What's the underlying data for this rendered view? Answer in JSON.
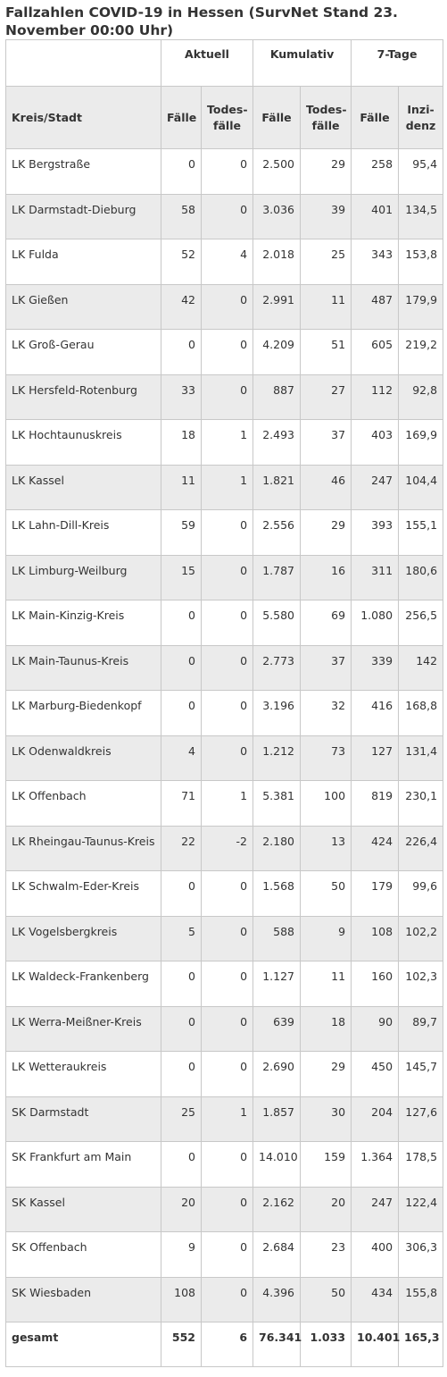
{
  "title": "Fallzahlen COVID-19 in Hessen (SurvNet Stand 23. November 00:00 Uhr)",
  "groups": {
    "aktuell": "Aktuell",
    "kumulativ": "Kumulativ",
    "sieben_tage": "7-Tage"
  },
  "columns": {
    "kreis": "Kreis/Stadt",
    "akt_faelle": "Fälle",
    "akt_tode_1": "Todes-",
    "akt_tode_2": "fälle",
    "kum_faelle": "Fälle",
    "kum_tode_1": "Todes-",
    "kum_tode_2": "fälle",
    "tage_faelle": "Fälle",
    "inz_1": "Inzi-",
    "inz_2": "denz"
  },
  "rows": [
    [
      "LK Bergstraße",
      "0",
      "0",
      "2.500",
      "29",
      "258",
      "95,4"
    ],
    [
      "LK Darmstadt-Dieburg",
      "58",
      "0",
      "3.036",
      "39",
      "401",
      "134,5"
    ],
    [
      "LK Fulda",
      "52",
      "4",
      "2.018",
      "25",
      "343",
      "153,8"
    ],
    [
      "LK Gießen",
      "42",
      "0",
      "2.991",
      "11",
      "487",
      "179,9"
    ],
    [
      "LK Groß-Gerau",
      "0",
      "0",
      "4.209",
      "51",
      "605",
      "219,2"
    ],
    [
      "LK Hersfeld-Rotenburg",
      "33",
      "0",
      "887",
      "27",
      "112",
      "92,8"
    ],
    [
      "LK Hochtaunuskreis",
      "18",
      "1",
      "2.493",
      "37",
      "403",
      "169,9"
    ],
    [
      "LK Kassel",
      "11",
      "1",
      "1.821",
      "46",
      "247",
      "104,4"
    ],
    [
      "LK Lahn-Dill-Kreis",
      "59",
      "0",
      "2.556",
      "29",
      "393",
      "155,1"
    ],
    [
      "LK Limburg-Weilburg",
      "15",
      "0",
      "1.787",
      "16",
      "311",
      "180,6"
    ],
    [
      "LK Main-Kinzig-Kreis",
      "0",
      "0",
      "5.580",
      "69",
      "1.080",
      "256,5"
    ],
    [
      "LK Main-Taunus-Kreis",
      "0",
      "0",
      "2.773",
      "37",
      "339",
      "142"
    ],
    [
      "LK Marburg-Biedenkopf",
      "0",
      "0",
      "3.196",
      "32",
      "416",
      "168,8"
    ],
    [
      "LK Odenwaldkreis",
      "4",
      "0",
      "1.212",
      "73",
      "127",
      "131,4"
    ],
    [
      "LK Offenbach",
      "71",
      "1",
      "5.381",
      "100",
      "819",
      "230,1"
    ],
    [
      "LK Rheingau-Taunus-Kreis",
      "22",
      "-2",
      "2.180",
      "13",
      "424",
      "226,4"
    ],
    [
      "LK Schwalm-Eder-Kreis",
      "0",
      "0",
      "1.568",
      "50",
      "179",
      "99,6"
    ],
    [
      "LK Vogelsbergkreis",
      "5",
      "0",
      "588",
      "9",
      "108",
      "102,2"
    ],
    [
      "LK Waldeck-Frankenberg",
      "0",
      "0",
      "1.127",
      "11",
      "160",
      "102,3"
    ],
    [
      "LK Werra-Meißner-Kreis",
      "0",
      "0",
      "639",
      "18",
      "90",
      "89,7"
    ],
    [
      "LK Wetteraukreis",
      "0",
      "0",
      "2.690",
      "29",
      "450",
      "145,7"
    ],
    [
      "SK Darmstadt",
      "25",
      "1",
      "1.857",
      "30",
      "204",
      "127,6"
    ],
    [
      "SK Frankfurt am Main",
      "0",
      "0",
      "14.010",
      "159",
      "1.364",
      "178,5"
    ],
    [
      "SK Kassel",
      "20",
      "0",
      "2.162",
      "20",
      "247",
      "122,4"
    ],
    [
      "SK Offenbach",
      "9",
      "0",
      "2.684",
      "23",
      "400",
      "306,3"
    ],
    [
      "SK Wiesbaden",
      "108",
      "0",
      "4.396",
      "50",
      "434",
      "155,8"
    ]
  ],
  "total": [
    "gesamt",
    "552",
    "6",
    "76.341",
    "1.033",
    "10.401",
    "165,3"
  ]
}
